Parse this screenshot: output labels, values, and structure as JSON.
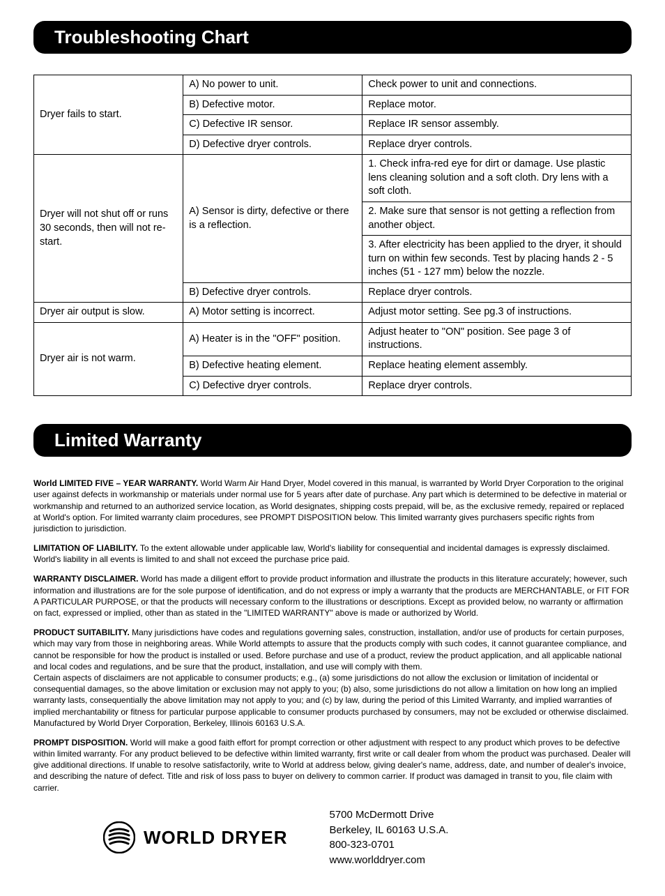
{
  "section1": {
    "title": "Troubleshooting Chart"
  },
  "table": {
    "rows": [
      {
        "c1": "Dryer fails to start.",
        "c1span": 4,
        "c2": "A) No power to unit.",
        "c3": "Check power to unit and connections."
      },
      {
        "c2": "B) Defective motor.",
        "c3": "Replace motor."
      },
      {
        "c2": "C) Defective IR sensor.",
        "c3": "Replace IR sensor assembly."
      },
      {
        "c2": "D) Defective dryer controls.",
        "c3": "Replace dryer controls."
      },
      {
        "c1": "Dryer will not shut off or runs 30 seconds, then will not re-start.",
        "c1span": 4,
        "c2": "A) Sensor is dirty, defective or there is a reflection.",
        "c2span": 3,
        "c3": "1. Check infra-red eye for dirt or damage. Use plastic lens cleaning solution and a soft cloth. Dry lens with a soft cloth."
      },
      {
        "c3": "2. Make sure that sensor is not getting a reflection from another object."
      },
      {
        "c3": "3. After electricity has been applied to the dryer, it should turn on within few seconds. Test by placing hands 2 - 5 inches (51 - 127 mm) below the nozzle."
      },
      {
        "c2": "B) Defective dryer controls.",
        "c3": "Replace dryer controls."
      },
      {
        "c1": "Dryer air output is slow.",
        "c1span": 1,
        "c2": "A) Motor setting is incorrect.",
        "c3": "Adjust motor setting. See pg.3 of instructions."
      },
      {
        "c1": "Dryer air is not warm.",
        "c1span": 3,
        "c2": "A) Heater is in the \"OFF\" position.",
        "c3": "Adjust heater to \"ON\" position. See page 3 of instructions."
      },
      {
        "c2": "B) Defective heating element.",
        "c3": "Replace heating element assembly."
      },
      {
        "c2": "C) Defective dryer controls.",
        "c3": "Replace dryer controls."
      }
    ]
  },
  "section2": {
    "title": "Limited Warranty"
  },
  "warranty": {
    "p1_bold": "World LIMITED FIVE – YEAR WARRANTY. ",
    "p1": "World Warm Air Hand Dryer, Model covered in this manual, is warranted by World Dryer Corporation to the original user against defects in workmanship or materials under normal use for 5 years after date of purchase. Any part which is determined to be defective in material or workmanship and returned to an authorized service location, as World designates, shipping costs prepaid, will be, as the exclusive remedy, repaired or replaced at World's option. For limited warranty claim procedures, see PROMPT DISPOSITION below. This limited warranty gives purchasers specific rights from jurisdiction to jurisdiction.",
    "p2_bold": "LIMITATION OF LIABILITY. ",
    "p2": "To the extent allowable under applicable law, World's liability for consequential and incidental damages is expressly disclaimed. World's liability in all events is limited to and shall not exceed the purchase price paid.",
    "p3_bold": "WARRANTY DISCLAIMER.  ",
    "p3": "World has made a diligent effort to provide product information and illustrate the products in this literature accurately; however, such information and illustrations are for the sole purpose of identification, and do not express or imply a warranty that the products are MERCHANTABLE, or FIT FOR A PARTICULAR PURPOSE, or that the products will necessary conform to the illustrations or descriptions. Except as provided below, no warranty or affirmation on fact, expressed or implied, other than as stated in the \"LIMITED WARRANTY\" above is made or authorized by World.",
    "p4_bold": "PRODUCT SUITABILITY. ",
    "p4a": "Many jurisdictions have codes and regulations governing sales, construction, installation, and/or use of products for certain purposes, which may vary from those in neighboring areas. While World attempts to assure that the products comply with such codes, it cannot guarantee compliance, and cannot be responsible for how the product is installed or used. Before purchase and use of a product, review the product application, and all applicable national and local codes and regulations, and be sure that the product, installation, and use will comply with them.",
    "p4b": "Certain aspects of disclaimers are not applicable to consumer products; e.g., (a) some jurisdictions do not allow the exclusion or limitation of incidental or consequential damages, so the above limitation or exclusion may not apply to you; (b) also, some jurisdictions do not allow a limitation on how long an implied warranty lasts, consequentially the above limitation may not apply to you; and (c) by law, during the period of this Limited Warranty, and implied warranties of implied merchantability or fitness for particular purpose applicable to consumer products purchased by consumers, may not be excluded or otherwise disclaimed.",
    "p4c": "Manufactured by World Dryer Corporation, Berkeley, Illinois 60163 U.S.A.",
    "p5_bold": "PROMPT DISPOSITION. ",
    "p5": "World will make a good faith effort for prompt correction or other adjustment with respect to any product which proves to be defective within limited warranty. For any product believed to be defective within limited warranty, first write or call dealer from whom the product was purchased. Dealer will give additional directions. If unable to resolve satisfactorily, write to World at address below, giving dealer's name, address, date, and number of dealer's invoice, and describing the nature of defect. Title and risk of loss pass to buyer on delivery to common carrier. If product was damaged in transit to you, file claim with carrier."
  },
  "footer": {
    "brand": "WORLD DRYER",
    "addr1": "5700 McDermott Drive",
    "addr2": "Berkeley, IL 60163 U.S.A.",
    "phone": "800-323-0701",
    "web": "www.worlddryer.com"
  }
}
